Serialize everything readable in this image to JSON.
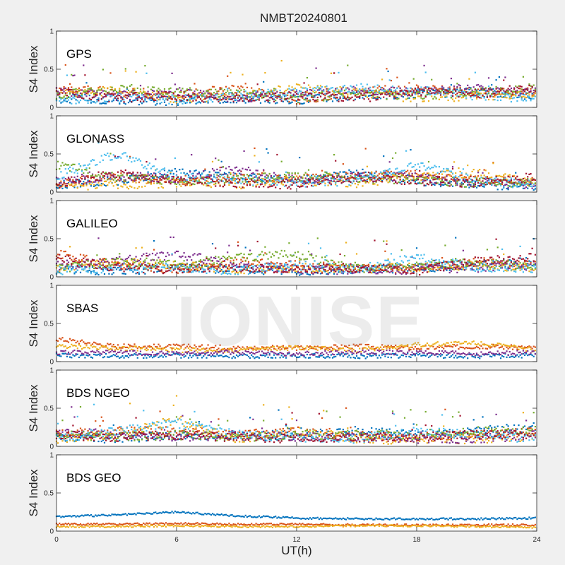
{
  "title": "NMBT20240801",
  "xlabel": "UT(h)",
  "ylabel": "S4 Index",
  "watermark": "IONISE",
  "colors": [
    "#0072BD",
    "#D95319",
    "#EDB120",
    "#7E2F8E",
    "#77AC30",
    "#4DBEEE",
    "#A2142F"
  ],
  "chart_data": [
    {
      "type": "scatter",
      "label": "GPS",
      "xlim": [
        0,
        24
      ],
      "ylim": [
        0,
        1
      ],
      "xticks": [
        0,
        6,
        12,
        18,
        24
      ],
      "yticks": [
        0,
        0.5,
        1
      ],
      "series": [
        {
          "color": "#0072BD",
          "x": [
            0,
            3,
            6,
            9,
            12,
            15,
            18,
            21,
            24
          ],
          "y": [
            0.12,
            0.1,
            0.08,
            0.12,
            0.1,
            0.15,
            0.18,
            0.2,
            0.15
          ]
        },
        {
          "color": "#D95319",
          "x": [
            0,
            3,
            6,
            9,
            12,
            15,
            18,
            21,
            24
          ],
          "y": [
            0.25,
            0.2,
            0.15,
            0.25,
            0.1,
            0.2,
            0.25,
            0.18,
            0.2
          ]
        },
        {
          "color": "#EDB120",
          "x": [
            0,
            3,
            6,
            9,
            12,
            15,
            18,
            21,
            24
          ],
          "y": [
            0.18,
            0.22,
            0.12,
            0.15,
            0.25,
            0.2,
            0.12,
            0.15,
            0.18
          ]
        },
        {
          "color": "#7E2F8E",
          "x": [
            0,
            3,
            6,
            9,
            12,
            15,
            18,
            21,
            24
          ],
          "y": [
            0.2,
            0.15,
            0.2,
            0.12,
            0.18,
            0.22,
            0.2,
            0.25,
            0.2
          ]
        },
        {
          "color": "#77AC30",
          "x": [
            0,
            3,
            6,
            9,
            12,
            15,
            18,
            21,
            24
          ],
          "y": [
            0.15,
            0.25,
            0.2,
            0.18,
            0.12,
            0.18,
            0.15,
            0.2,
            0.25
          ]
        },
        {
          "color": "#4DBEEE",
          "x": [
            0,
            3,
            6,
            9,
            12,
            15,
            18,
            21,
            24
          ],
          "y": [
            0.1,
            0.12,
            0.1,
            0.15,
            0.2,
            0.25,
            0.22,
            0.15,
            0.12
          ]
        },
        {
          "color": "#A2142F",
          "x": [
            0,
            3,
            6,
            9,
            12,
            15,
            18,
            21,
            24
          ],
          "y": [
            0.2,
            0.12,
            0.15,
            0.1,
            0.15,
            0.12,
            0.2,
            0.18,
            0.25
          ]
        }
      ]
    },
    {
      "type": "scatter",
      "label": "GLONASS",
      "xlim": [
        0,
        24
      ],
      "ylim": [
        0,
        1
      ],
      "xticks": [
        0,
        6,
        12,
        18,
        24
      ],
      "yticks": [
        0,
        0.5,
        1
      ],
      "series": [
        {
          "color": "#0072BD",
          "x": [
            0,
            3,
            6,
            9,
            12,
            15,
            18,
            21,
            24
          ],
          "y": [
            0.1,
            0.15,
            0.25,
            0.2,
            0.15,
            0.25,
            0.15,
            0.1,
            0.08
          ]
        },
        {
          "color": "#D95319",
          "x": [
            0,
            3,
            6,
            9,
            12,
            15,
            18,
            21,
            24
          ],
          "y": [
            0.12,
            0.2,
            0.15,
            0.2,
            0.18,
            0.2,
            0.25,
            0.15,
            0.15
          ]
        },
        {
          "color": "#EDB120",
          "x": [
            0,
            3,
            6,
            9,
            12,
            15,
            18,
            21,
            24
          ],
          "y": [
            0.08,
            0.1,
            0.12,
            0.1,
            0.15,
            0.12,
            0.2,
            0.25,
            0.1
          ]
        },
        {
          "color": "#7E2F8E",
          "x": [
            0,
            3,
            6,
            9,
            12,
            15,
            18,
            21,
            24
          ],
          "y": [
            0.15,
            0.2,
            0.18,
            0.3,
            0.15,
            0.2,
            0.2,
            0.12,
            0.1
          ]
        },
        {
          "color": "#77AC30",
          "x": [
            0,
            3,
            6,
            9,
            12,
            15,
            18,
            21,
            24
          ],
          "y": [
            0.35,
            0.2,
            0.15,
            0.18,
            0.2,
            0.18,
            0.15,
            0.12,
            0.12
          ]
        },
        {
          "color": "#4DBEEE",
          "x": [
            0,
            3,
            6,
            9,
            12,
            15,
            18,
            21,
            24
          ],
          "y": [
            0.2,
            0.5,
            0.2,
            0.15,
            0.12,
            0.15,
            0.35,
            0.15,
            0.1
          ]
        },
        {
          "color": "#A2142F",
          "x": [
            0,
            3,
            6,
            9,
            12,
            15,
            18,
            21,
            24
          ],
          "y": [
            0.1,
            0.25,
            0.15,
            0.12,
            0.1,
            0.2,
            0.15,
            0.12,
            0.2
          ]
        }
      ]
    },
    {
      "type": "scatter",
      "label": "GALILEO",
      "xlim": [
        0,
        24
      ],
      "ylim": [
        0,
        1
      ],
      "xticks": [
        0,
        6,
        12,
        18,
        24
      ],
      "yticks": [
        0,
        0.5,
        1
      ],
      "series": [
        {
          "color": "#0072BD",
          "x": [
            0,
            3,
            6,
            9,
            12,
            15,
            18,
            21,
            24
          ],
          "y": [
            0.1,
            0.08,
            0.12,
            0.1,
            0.08,
            0.1,
            0.12,
            0.15,
            0.2
          ]
        },
        {
          "color": "#D95319",
          "x": [
            0,
            3,
            6,
            9,
            12,
            15,
            18,
            21,
            24
          ],
          "y": [
            0.3,
            0.15,
            0.1,
            0.2,
            0.15,
            0.12,
            0.1,
            0.2,
            0.15
          ]
        },
        {
          "color": "#EDB120",
          "x": [
            0,
            3,
            6,
            9,
            12,
            15,
            18,
            21,
            24
          ],
          "y": [
            0.12,
            0.2,
            0.15,
            0.1,
            0.12,
            0.1,
            0.12,
            0.15,
            0.1
          ]
        },
        {
          "color": "#7E2F8E",
          "x": [
            0,
            3,
            6,
            9,
            12,
            15,
            18,
            21,
            24
          ],
          "y": [
            0.15,
            0.2,
            0.3,
            0.15,
            0.1,
            0.08,
            0.1,
            0.12,
            0.15
          ]
        },
        {
          "color": "#77AC30",
          "x": [
            0,
            3,
            6,
            9,
            12,
            15,
            18,
            21,
            24
          ],
          "y": [
            0.1,
            0.2,
            0.15,
            0.25,
            0.3,
            0.1,
            0.15,
            0.2,
            0.12
          ]
        },
        {
          "color": "#4DBEEE",
          "x": [
            0,
            3,
            6,
            9,
            12,
            15,
            18,
            21,
            24
          ],
          "y": [
            0.08,
            0.12,
            0.1,
            0.08,
            0.15,
            0.1,
            0.25,
            0.12,
            0.1
          ]
        },
        {
          "color": "#A2142F",
          "x": [
            0,
            3,
            6,
            9,
            12,
            15,
            18,
            21,
            24
          ],
          "y": [
            0.25,
            0.12,
            0.1,
            0.12,
            0.1,
            0.12,
            0.08,
            0.2,
            0.25
          ]
        }
      ]
    },
    {
      "type": "scatter",
      "label": "SBAS",
      "xlim": [
        0,
        24
      ],
      "ylim": [
        0,
        1
      ],
      "xticks": [
        0,
        6,
        12,
        18,
        24
      ],
      "yticks": [
        0,
        0.5,
        1
      ],
      "series": [
        {
          "color": "#0072BD",
          "x": [
            0,
            3,
            6,
            9,
            12,
            15,
            18,
            21,
            24
          ],
          "y": [
            0.08,
            0.07,
            0.08,
            0.07,
            0.08,
            0.07,
            0.08,
            0.07,
            0.08
          ]
        },
        {
          "color": "#D95319",
          "x": [
            0,
            3,
            6,
            9,
            12,
            15,
            18,
            21,
            24
          ],
          "y": [
            0.3,
            0.2,
            0.2,
            0.18,
            0.18,
            0.2,
            0.18,
            0.2,
            0.18
          ]
        },
        {
          "color": "#EDB120",
          "x": [
            0,
            3,
            6,
            9,
            12,
            15,
            18,
            21,
            24
          ],
          "y": [
            0.2,
            0.18,
            0.15,
            0.15,
            0.18,
            0.15,
            0.22,
            0.25,
            0.15
          ]
        },
        {
          "color": "#7E2F8E",
          "x": [
            0,
            3,
            6,
            9,
            12,
            15,
            18,
            21,
            24
          ],
          "y": [
            0.12,
            0.12,
            0.1,
            0.12,
            0.1,
            0.12,
            0.12,
            0.1,
            0.12
          ]
        }
      ]
    },
    {
      "type": "scatter",
      "label": "BDS NGEO",
      "xlim": [
        0,
        24
      ],
      "ylim": [
        0,
        1
      ],
      "xticks": [
        0,
        6,
        12,
        18,
        24
      ],
      "yticks": [
        0,
        0.5,
        1
      ],
      "series": [
        {
          "color": "#0072BD",
          "x": [
            0,
            3,
            6,
            9,
            12,
            15,
            18,
            21,
            24
          ],
          "y": [
            0.12,
            0.1,
            0.15,
            0.12,
            0.15,
            0.2,
            0.15,
            0.2,
            0.25
          ]
        },
        {
          "color": "#D95319",
          "x": [
            0,
            3,
            6,
            9,
            12,
            15,
            18,
            21,
            24
          ],
          "y": [
            0.15,
            0.2,
            0.2,
            0.15,
            0.2,
            0.15,
            0.12,
            0.15,
            0.2
          ]
        },
        {
          "color": "#EDB120",
          "x": [
            0,
            3,
            6,
            9,
            12,
            15,
            18,
            21,
            24
          ],
          "y": [
            0.1,
            0.15,
            0.35,
            0.1,
            0.2,
            0.1,
            0.08,
            0.1,
            0.12
          ]
        },
        {
          "color": "#7E2F8E",
          "x": [
            0,
            3,
            6,
            9,
            12,
            15,
            18,
            21,
            24
          ],
          "y": [
            0.2,
            0.15,
            0.12,
            0.15,
            0.12,
            0.12,
            0.1,
            0.1,
            0.15
          ]
        },
        {
          "color": "#77AC30",
          "x": [
            0,
            3,
            6,
            9,
            12,
            15,
            18,
            21,
            24
          ],
          "y": [
            0.15,
            0.12,
            0.15,
            0.12,
            0.15,
            0.15,
            0.15,
            0.2,
            0.2
          ]
        },
        {
          "color": "#4DBEEE",
          "x": [
            0,
            3,
            6,
            9,
            12,
            15,
            18,
            21,
            24
          ],
          "y": [
            0.1,
            0.2,
            0.3,
            0.15,
            0.12,
            0.1,
            0.2,
            0.15,
            0.1
          ]
        },
        {
          "color": "#A2142F",
          "x": [
            0,
            3,
            6,
            9,
            12,
            15,
            18,
            21,
            24
          ],
          "y": [
            0.15,
            0.12,
            0.15,
            0.12,
            0.1,
            0.12,
            0.12,
            0.15,
            0.15
          ]
        }
      ]
    },
    {
      "type": "scatter",
      "label": "BDS GEO",
      "xlim": [
        0,
        24
      ],
      "ylim": [
        0,
        1
      ],
      "xticks": [
        0,
        6,
        12,
        18,
        24
      ],
      "yticks": [
        0,
        0.5,
        1
      ],
      "series": [
        {
          "color": "#0072BD",
          "x": [
            0,
            3,
            6,
            9,
            12,
            15,
            18,
            21,
            24
          ],
          "y": [
            0.19,
            0.21,
            0.25,
            0.2,
            0.17,
            0.16,
            0.16,
            0.16,
            0.17
          ]
        },
        {
          "color": "#D95319",
          "x": [
            0,
            3,
            6,
            9,
            12,
            15,
            18,
            21,
            24
          ],
          "y": [
            0.09,
            0.09,
            0.1,
            0.09,
            0.09,
            0.08,
            0.08,
            0.08,
            0.08
          ]
        },
        {
          "color": "#EDB120",
          "x": [
            0,
            3,
            6,
            9,
            12,
            15,
            18,
            21,
            24
          ],
          "y": [
            0.06,
            0.06,
            0.07,
            0.06,
            0.06,
            0.07,
            0.07,
            0.06,
            0.05
          ]
        }
      ]
    }
  ]
}
